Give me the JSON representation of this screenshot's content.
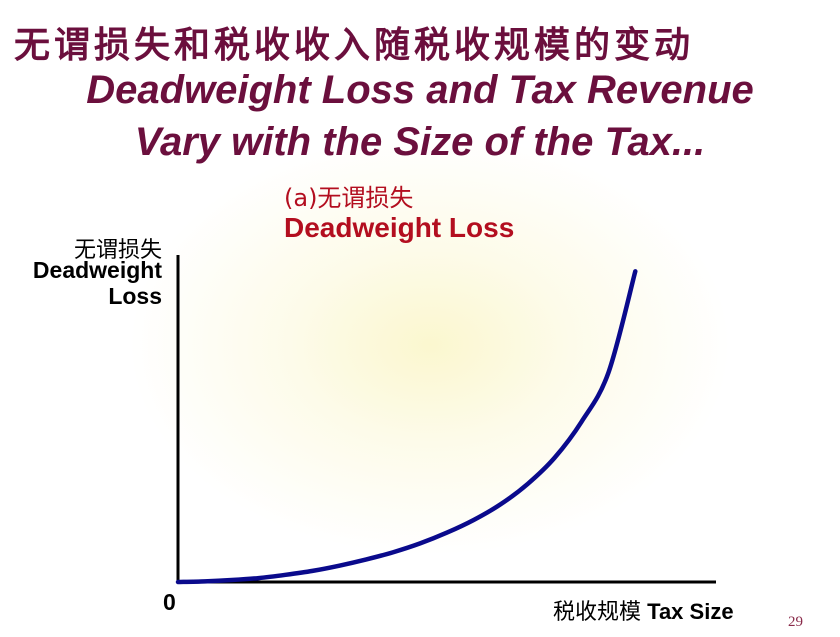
{
  "slide": {
    "title_cn": "无谓损失和税收收入随税收规模的变动",
    "title_en_line1": "Deadweight Loss and Tax Revenue",
    "title_en_line2": "Vary with the Size of the Tax...",
    "page_number": "29"
  },
  "chart_data": {
    "type": "line",
    "panel_label_cn": "(a)无谓损失",
    "title": "Deadweight Loss",
    "ylabel_cn": "无谓损失",
    "ylabel_line1": "Deadweight",
    "ylabel_line2": "Loss",
    "xlabel_cn": "税收规模",
    "xlabel": "Tax Size",
    "origin_label": "0",
    "x_axis_ticks": false,
    "y_axis_ticks": false,
    "xlim": [
      0,
      1
    ],
    "ylim": [
      0,
      1
    ],
    "series": [
      {
        "color": "#0a0a8c",
        "x": [
          0,
          0.05,
          0.1,
          0.15,
          0.2,
          0.25,
          0.3,
          0.35,
          0.4,
          0.45,
          0.5,
          0.55,
          0.6,
          0.65,
          0.7,
          0.75,
          0.8,
          0.85
        ],
        "y": [
          0,
          0.002,
          0.006,
          0.012,
          0.022,
          0.034,
          0.05,
          0.069,
          0.091,
          0.118,
          0.151,
          0.19,
          0.238,
          0.3,
          0.38,
          0.49,
          0.64,
          0.95
        ]
      }
    ]
  }
}
